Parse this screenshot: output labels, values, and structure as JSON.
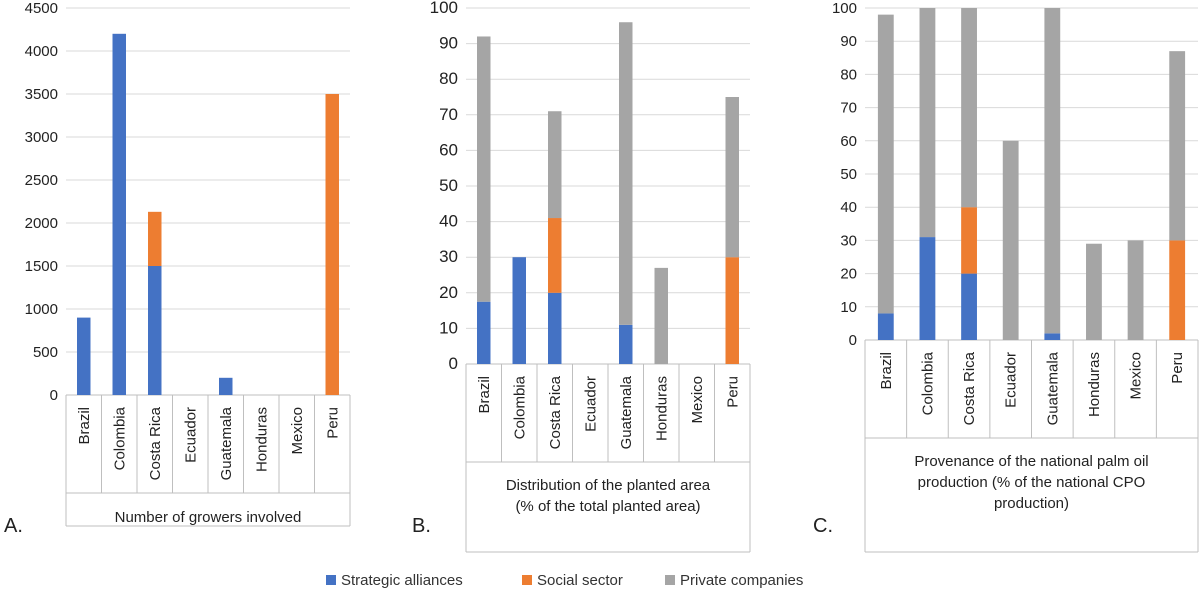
{
  "legend": [
    {
      "label": "Strategic alliances",
      "color": "#4472C4"
    },
    {
      "label": "Social sector",
      "color": "#ED7D31"
    },
    {
      "label": "Private companies",
      "color": "#A5A5A5"
    }
  ],
  "chart_data": [
    {
      "type": "bar",
      "stacked": true,
      "panel_label": "A.",
      "xlabel": "Number of growers involved",
      "xlabel_lines": [
        "Number of growers involved"
      ],
      "categories": [
        "Brazil",
        "Colombia",
        "Costa Rica",
        "Ecuador",
        "Guatemala",
        "Honduras",
        "Mexico",
        "Peru"
      ],
      "ylim": [
        0,
        4500
      ],
      "yticks": [
        0,
        500,
        1000,
        1500,
        2000,
        2500,
        3000,
        3500,
        4000,
        4500
      ],
      "grid": true,
      "series": [
        {
          "name": "Strategic alliances",
          "values": [
            900,
            4200,
            1500,
            0,
            200,
            0,
            0,
            0
          ]
        },
        {
          "name": "Social sector",
          "values": [
            0,
            0,
            630,
            0,
            0,
            0,
            0,
            3500
          ]
        },
        {
          "name": "Private companies",
          "values": [
            0,
            0,
            0,
            0,
            0,
            0,
            0,
            0
          ]
        }
      ]
    },
    {
      "type": "bar",
      "stacked": true,
      "panel_label": "B.",
      "xlabel": "Distribution of the planted area (% of the total planted area)",
      "xlabel_lines": [
        "Distribution of the planted area",
        "(% of the total planted area)"
      ],
      "categories": [
        "Brazil",
        "Colombia",
        "Costa Rica",
        "Ecuador",
        "Guatemala",
        "Honduras",
        "Mexico",
        "Peru"
      ],
      "ylim": [
        0,
        100
      ],
      "yticks": [
        0,
        10,
        20,
        30,
        40,
        50,
        60,
        70,
        80,
        90,
        100
      ],
      "grid": true,
      "series": [
        {
          "name": "Strategic alliances",
          "values": [
            17.5,
            30,
            20,
            0,
            11,
            0,
            0,
            0
          ]
        },
        {
          "name": "Social sector",
          "values": [
            0,
            0,
            21,
            0,
            0,
            0,
            0,
            30
          ]
        },
        {
          "name": "Private companies",
          "values": [
            74.5,
            0,
            30,
            0,
            85,
            27,
            0,
            45
          ]
        }
      ]
    },
    {
      "type": "bar",
      "stacked": true,
      "panel_label": "C.",
      "xlabel": "Provenance of the national palm oil production (% of the national CPO production)",
      "xlabel_lines": [
        "Provenance of the national palm oil",
        "production  (% of the national CPO",
        "production)"
      ],
      "categories": [
        "Brazil",
        "Colombia",
        "Costa Rica",
        "Ecuador",
        "Guatemala",
        "Honduras",
        "Mexico",
        "Peru"
      ],
      "ylim": [
        0,
        100
      ],
      "yticks": [
        0,
        10,
        20,
        30,
        40,
        50,
        60,
        70,
        80,
        90,
        100
      ],
      "grid": true,
      "series": [
        {
          "name": "Strategic alliances",
          "values": [
            8,
            31,
            20,
            0,
            2,
            0,
            0,
            0
          ]
        },
        {
          "name": "Social sector",
          "values": [
            0,
            0,
            20,
            0,
            0,
            0,
            0,
            30
          ]
        },
        {
          "name": "Private companies",
          "values": [
            90,
            69,
            60,
            60,
            98,
            29,
            30,
            57
          ]
        }
      ]
    }
  ]
}
